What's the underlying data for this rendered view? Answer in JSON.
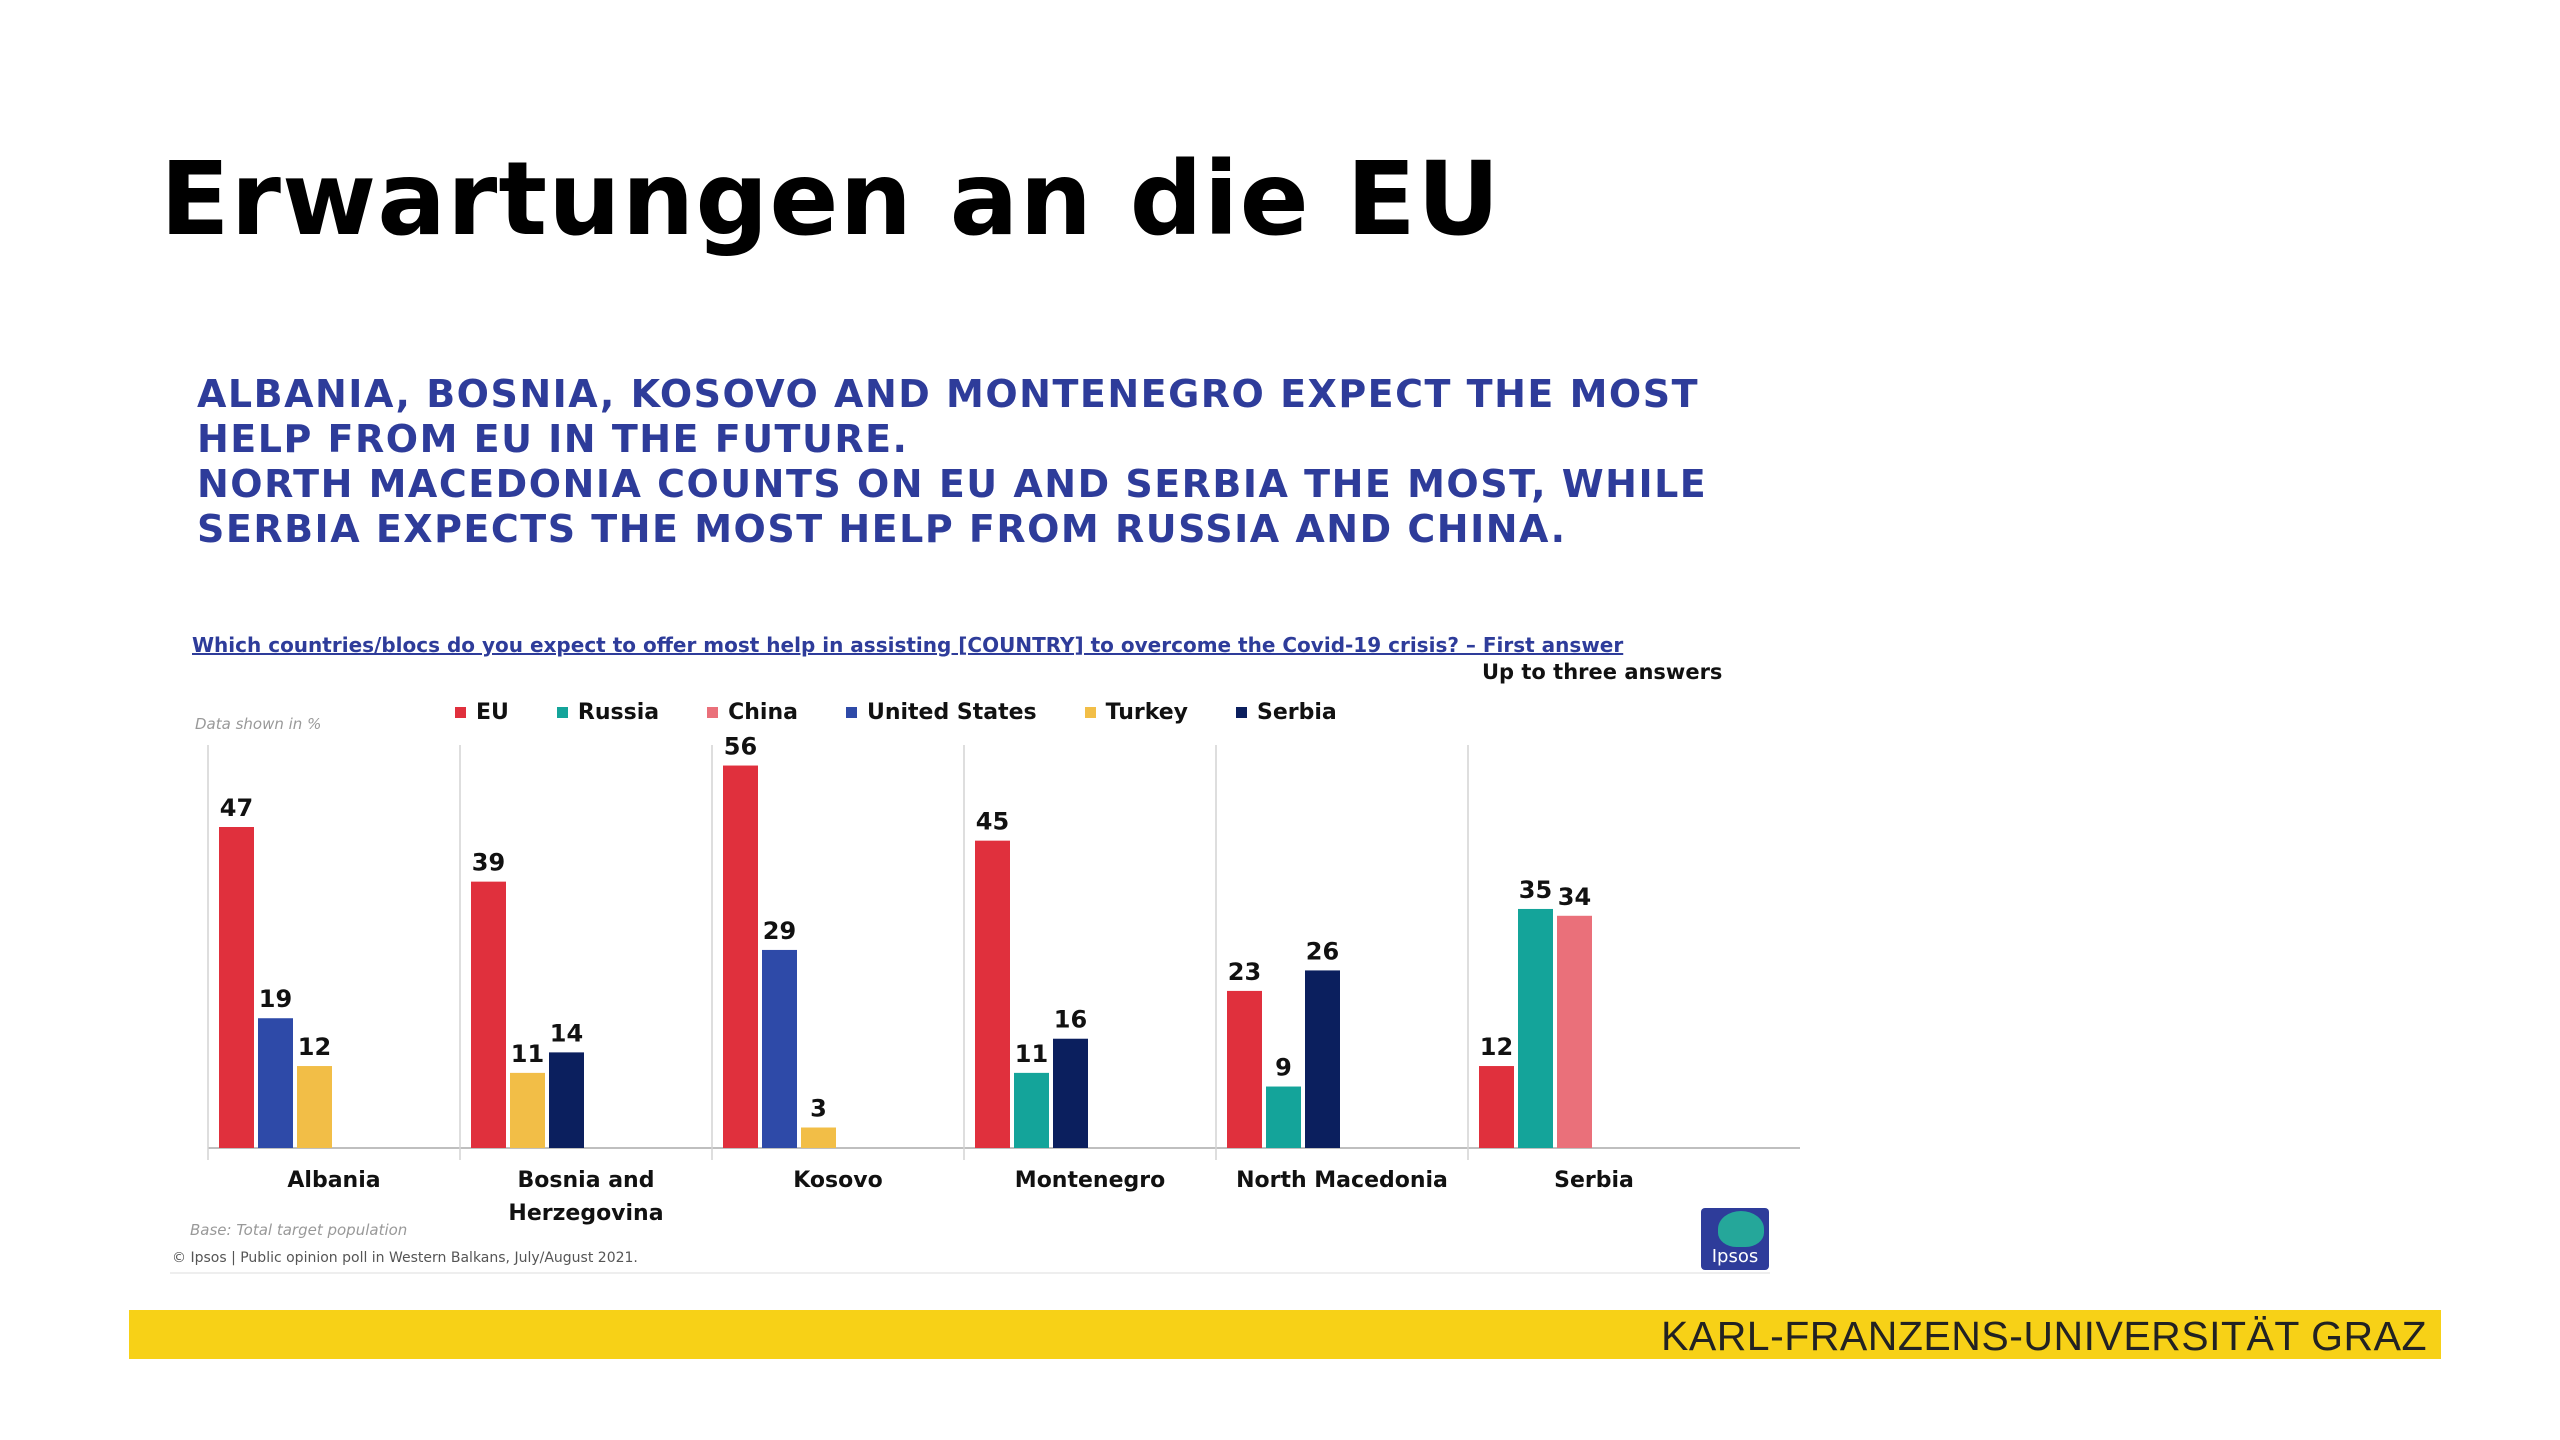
{
  "slide": {
    "title": "Erwartungen an die EU",
    "subtitle_lines": [
      "ALBANIA, BOSNIA, KOSOVO AND MONTENEGRO EXPECT THE MOST",
      "HELP FROM EU IN THE FUTURE.",
      "NORTH MACEDONIA COUNTS ON EU AND SERBIA THE MOST, WHILE",
      "SERBIA EXPECTS THE MOST HELP FROM RUSSIA AND CHINA."
    ],
    "question": "Which countries/blocs do you expect to offer most help in assisting [COUNTRY] to overcome the Covid-19 crisis? – First answer",
    "answer_note": "Up to three answers",
    "data_note": "Data shown in %",
    "base_note": "Base: Total target population",
    "source_note": "© Ipsos | Public opinion poll in Western Balkans, July/August 2021.",
    "logo_text": "Ipsos",
    "footer_text": "KARL-FRANZENS-UNIVERSITÄT GRAZ",
    "footer_color": "#F7D117"
  },
  "chart_data": {
    "type": "bar",
    "categories": [
      "Albania",
      "Bosnia and Herzegovina",
      "Kosovo",
      "Montenegro",
      "North Macedonia",
      "Serbia"
    ],
    "category_lines": [
      [
        "Albania"
      ],
      [
        "Bosnia and",
        "Herzegovina"
      ],
      [
        "Kosovo"
      ],
      [
        "Montenegro"
      ],
      [
        "North Macedonia"
      ],
      [
        "Serbia"
      ]
    ],
    "series": [
      {
        "name": "EU",
        "color": "#E0303D",
        "values": [
          47,
          39,
          56,
          45,
          23,
          12
        ]
      },
      {
        "name": "Russia",
        "color": "#14A49A",
        "values": [
          null,
          null,
          null,
          11,
          9,
          35
        ]
      },
      {
        "name": "China",
        "color": "#EA707A",
        "values": [
          null,
          null,
          null,
          null,
          null,
          34
        ]
      },
      {
        "name": "United States",
        "color": "#2E4AA8",
        "values": [
          19,
          null,
          29,
          null,
          null,
          null
        ]
      },
      {
        "name": "Turkey",
        "color": "#F2BE47",
        "values": [
          12,
          11,
          3,
          null,
          null,
          null
        ]
      },
      {
        "name": "Serbia",
        "color": "#0B1F5E",
        "values": [
          null,
          14,
          null,
          16,
          26,
          null
        ]
      }
    ],
    "ylim": [
      0,
      60
    ],
    "xlabel": "",
    "ylabel": "",
    "grid": false,
    "legend_position": "top"
  }
}
